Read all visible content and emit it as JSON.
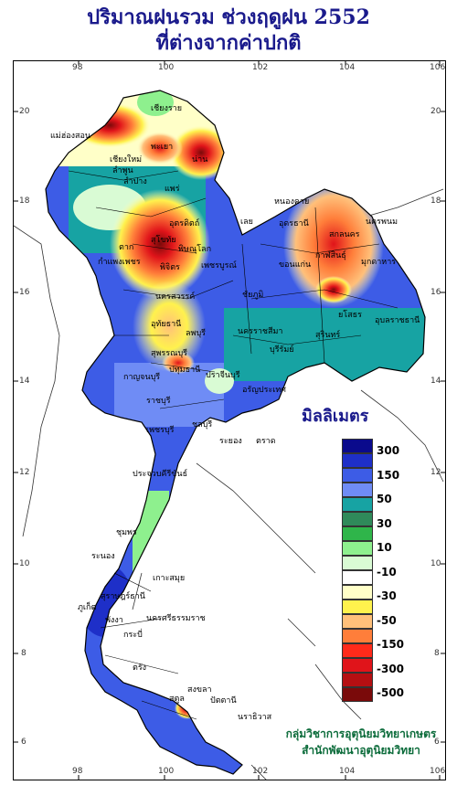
{
  "title_line1": "ปริมาณฝนรวม ช่วงฤดูฝน 2552",
  "title_line2": "ที่ต่างจากค่าปกติ",
  "x_ticks": [
    "98",
    "100",
    "102",
    "104",
    "106"
  ],
  "y_ticks": [
    "20",
    "18",
    "16",
    "14",
    "12",
    "10",
    "8",
    "6"
  ],
  "legend": {
    "title": "มิลลิเมตร",
    "colors": [
      "#0a0a8c",
      "#1e2fc8",
      "#3d5ce6",
      "#6f8cf5",
      "#17a3a3",
      "#2f8a5a",
      "#2fb54a",
      "#8ef08e",
      "#d9fbd4",
      "#ffffff",
      "#ffffc8",
      "#fff24d",
      "#ffc07a",
      "#ff7e3a",
      "#ff2a1a",
      "#e0141a",
      "#b50f12",
      "#7a0a0a"
    ],
    "labels": [
      "300",
      "150",
      "50",
      "30",
      "10",
      "-10",
      "-30",
      "-50",
      "-150",
      "-300",
      "-500"
    ]
  },
  "credit_line1": "กลุ่มวิชาการอุตุนิยมวิทยาเกษตร",
  "credit_line2": "สำนักพัฒนาอุตุนิยมวิทยา",
  "places": [
    {
      "name": "เชียงราย"
    },
    {
      "name": "แม่ฮ่องสอน"
    },
    {
      "name": "พะเยา"
    },
    {
      "name": "น่าน"
    },
    {
      "name": "เชียงใหม่"
    },
    {
      "name": "ลำพูน"
    },
    {
      "name": "ลำปาง"
    },
    {
      "name": "แพร่"
    },
    {
      "name": "อุตรดิตถ์"
    },
    {
      "name": "ตาก"
    },
    {
      "name": "สุโขทัย"
    },
    {
      "name": "พิษณุโลก"
    },
    {
      "name": "เลย"
    },
    {
      "name": "หนองคาย"
    },
    {
      "name": "อุดรธานี"
    },
    {
      "name": "สกลนคร"
    },
    {
      "name": "นครพนม"
    },
    {
      "name": "มุกดาหาร"
    },
    {
      "name": "กาฬสินธุ์"
    },
    {
      "name": "ขอนแก่น"
    },
    {
      "name": "กำแพงเพชร"
    },
    {
      "name": "พิจิตร"
    },
    {
      "name": "เพชรบูรณ์"
    },
    {
      "name": "ชัยภูมิ"
    },
    {
      "name": "นครสวรรค์"
    },
    {
      "name": "อุทัยธานี"
    },
    {
      "name": "ลพบุรี"
    },
    {
      "name": "นครราชสีมา"
    },
    {
      "name": "บุรีรัมย์"
    },
    {
      "name": "สุรินทร์"
    },
    {
      "name": "ยโสธร"
    },
    {
      "name": "อุบลราชธานี"
    },
    {
      "name": "สุพรรณบุรี"
    },
    {
      "name": "กาญจนบุรี"
    },
    {
      "name": "ราชบุรี"
    },
    {
      "name": "ปทุมธานี"
    },
    {
      "name": "ปราจีนบุรี"
    },
    {
      "name": "อรัญประเทศ"
    },
    {
      "name": "ชลบุรี"
    },
    {
      "name": "ระยอง"
    },
    {
      "name": "ตราด"
    },
    {
      "name": "เพชรบุรี"
    },
    {
      "name": "ประจวบคีรีขันธ์"
    },
    {
      "name": "ชุมพร"
    },
    {
      "name": "ระนอง"
    },
    {
      "name": "เกาะสมุย"
    },
    {
      "name": "สุราษฎร์ธานี"
    },
    {
      "name": "นครศรีธรรมราช"
    },
    {
      "name": "ภูเก็ต"
    },
    {
      "name": "พังงา"
    },
    {
      "name": "กระบี่"
    },
    {
      "name": "ตรัง"
    },
    {
      "name": "สงขลา"
    },
    {
      "name": "ปัตตานี"
    },
    {
      "name": "นราธิวาส"
    },
    {
      "name": "สตูล"
    }
  ]
}
